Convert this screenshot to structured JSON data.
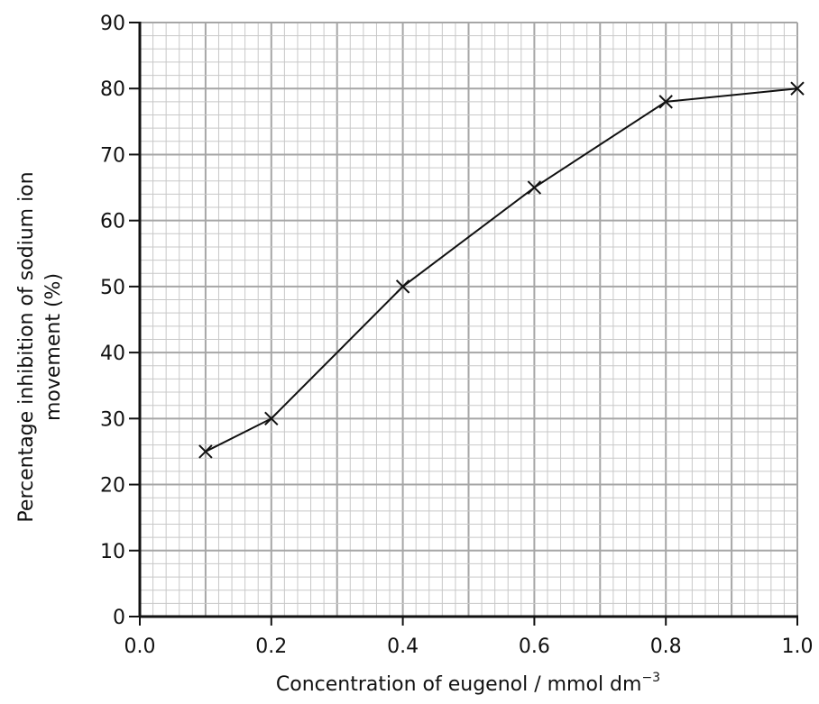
{
  "chart_data": {
    "type": "line",
    "title": "",
    "xlabel_prefix": "Concentration of eugenol / mmol dm",
    "xlabel_superscript": "−3",
    "ylabel_line1": "Percentage inhibition of sodium ion",
    "ylabel_line2": "movement (%)",
    "xlim": [
      0.0,
      1.0
    ],
    "ylim": [
      0,
      90
    ],
    "x_ticks": [
      "0.0",
      "0.2",
      "0.4",
      "0.6",
      "0.8",
      "1.0"
    ],
    "y_ticks": [
      "0",
      "10",
      "20",
      "30",
      "40",
      "50",
      "60",
      "70",
      "80",
      "90"
    ],
    "grid": true,
    "marker": "x",
    "series": [
      {
        "x": [
          0.1,
          0.2,
          0.4,
          0.6,
          0.8,
          1.0
        ],
        "y": [
          25,
          30,
          50,
          65,
          78,
          80
        ]
      }
    ]
  }
}
